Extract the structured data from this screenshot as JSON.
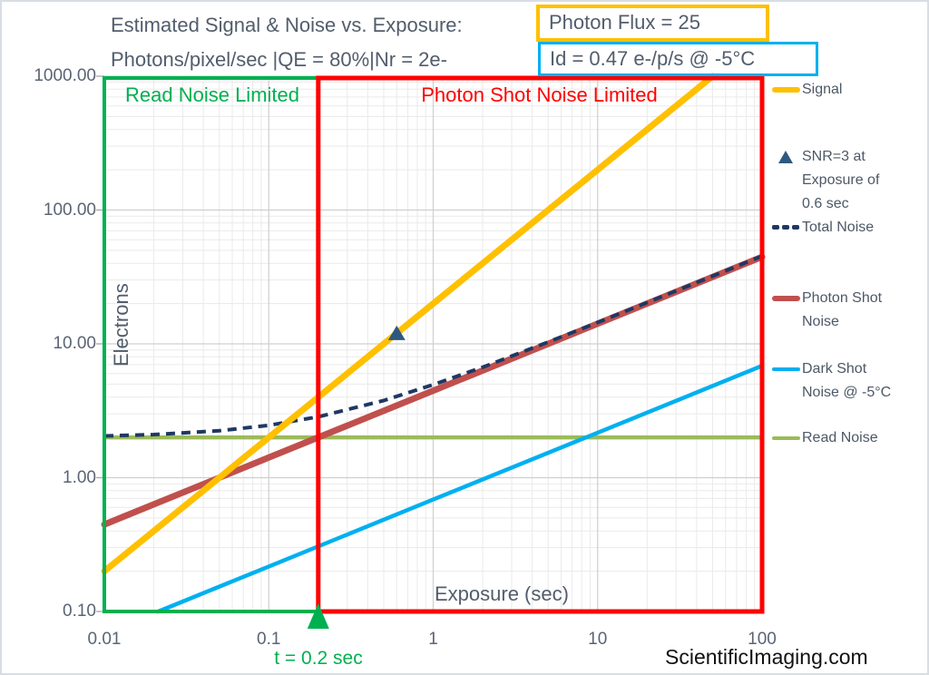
{
  "page": {
    "watermark": "ScientificImaging.com"
  },
  "title": {
    "line1": "Estimated Signal & Noise vs. Exposure:",
    "line1_boxed": "Photon Flux = 25",
    "line2": "Photons/pixel/sec |QE = 80%|Nr = 2e-",
    "line2_boxed": "Id = 0.47 e-/p/s @ -5°C",
    "box1_color": "#FFC000",
    "box2_color": "#00B0F0"
  },
  "chart_data": {
    "type": "line",
    "title": "Estimated Signal & Noise vs. Exposure: Photon Flux = 25 Photons/pixel/sec |QE = 80%|Nr = 2e- Id = 0.47 e-/p/s @ -5°C",
    "x_axis": {
      "label": "Exposure (sec)",
      "scale": "log",
      "min": 0.01,
      "max": 100,
      "ticks": [
        {
          "value": 0.01,
          "label": "0.01"
        },
        {
          "value": 0.1,
          "label": "0.1"
        },
        {
          "value": 1,
          "label": "1"
        },
        {
          "value": 10,
          "label": "10"
        },
        {
          "value": 100,
          "label": "100"
        }
      ]
    },
    "y_axis": {
      "label": "Electrons",
      "scale": "log",
      "min": 0.1,
      "max": 1000,
      "ticks": [
        {
          "value": 1000,
          "label": "1000.00"
        },
        {
          "value": 100,
          "label": "100.00"
        },
        {
          "value": 10,
          "label": "10.00"
        },
        {
          "value": 1,
          "label": "1.00"
        },
        {
          "value": 0.1,
          "label": "0.10"
        }
      ]
    },
    "grid": {
      "major": true,
      "minor": true,
      "major_color": "#CFCFCF",
      "minor_color": "#EAEAEA"
    },
    "series": [
      {
        "name": "Signal",
        "color": "#FFC000",
        "style": "solid",
        "width": 7,
        "points": [
          [
            0.01,
            0.2
          ],
          [
            0.1,
            2
          ],
          [
            1,
            20
          ],
          [
            10,
            200
          ],
          [
            50,
            1000
          ]
        ]
      },
      {
        "name": "Total Noise",
        "color": "#1F3864",
        "style": "dashed",
        "width": 4,
        "points": [
          [
            0.01,
            2.05
          ],
          [
            0.02,
            2.1
          ],
          [
            0.05,
            2.24
          ],
          [
            0.1,
            2.46
          ],
          [
            0.2,
            2.85
          ],
          [
            0.5,
            3.77
          ],
          [
            1,
            4.95
          ],
          [
            2,
            6.7
          ],
          [
            5,
            10.31
          ],
          [
            10,
            14.45
          ],
          [
            20,
            20.33
          ],
          [
            50,
            32.05
          ],
          [
            100,
            45.29
          ]
        ]
      },
      {
        "name": "Photon Shot Noise",
        "color": "#C0504D",
        "style": "solid",
        "width": 7,
        "points": [
          [
            0.01,
            0.447
          ],
          [
            0.1,
            1.414
          ],
          [
            1,
            4.472
          ],
          [
            10,
            14.14
          ],
          [
            100,
            44.72
          ]
        ]
      },
      {
        "name": "Dark Shot Noise @ -5°C",
        "color": "#00B0F0",
        "style": "solid",
        "width": 4.5,
        "points": [
          [
            0.0213,
            0.1
          ],
          [
            0.1,
            0.217
          ],
          [
            1,
            0.686
          ],
          [
            10,
            2.168
          ],
          [
            100,
            6.856
          ]
        ]
      },
      {
        "name": "Read Noise",
        "color": "#9BBB59",
        "style": "solid",
        "width": 4.5,
        "points": [
          [
            0.01,
            2
          ],
          [
            100,
            2
          ]
        ]
      }
    ],
    "markers": [
      {
        "name": "SNR=3 at Exposure of 0.6 sec",
        "shape": "triangle-up",
        "color": "#2F5880",
        "x": 0.6,
        "y": 12
      },
      {
        "name": "t = 0.2 sec exposure marker",
        "shape": "triangle-up",
        "color": "#00B050",
        "x": 0.2,
        "y": 0.1
      }
    ],
    "regions": [
      {
        "label": "Read Noise Limited",
        "color": "#00B050",
        "x_from": 0.01,
        "x_to": 0.2
      },
      {
        "label": "Photon Shot Noise Limited",
        "color": "#FF0000",
        "x_from": 0.2,
        "x_to": 100
      }
    ],
    "annotations": [
      {
        "text": "t = 0.2 sec",
        "color": "#00B050",
        "x": 0.2
      }
    ],
    "legend_position": "right"
  },
  "legend": {
    "items": [
      {
        "swatch": "line",
        "thickness": 6,
        "color": "#FFC000",
        "lines": [
          "Signal"
        ]
      },
      {
        "swatch": "triangle",
        "thickness": 0,
        "color": "#2F5880",
        "lines": [
          "SNR=3 at",
          "Exposure of",
          "0.6 sec"
        ]
      },
      {
        "swatch": "dashes",
        "thickness": 5,
        "color": "#1F3864",
        "lines": [
          "Total Noise"
        ]
      },
      {
        "swatch": "line",
        "thickness": 6,
        "color": "#C0504D",
        "lines": [
          "Photon Shot",
          "Noise"
        ]
      },
      {
        "swatch": "line",
        "thickness": 4,
        "color": "#00B0F0",
        "lines": [
          "Dark Shot",
          "Noise @ -5°C"
        ]
      },
      {
        "swatch": "line",
        "thickness": 4,
        "color": "#9BBB59",
        "lines": [
          "Read Noise"
        ]
      }
    ]
  }
}
